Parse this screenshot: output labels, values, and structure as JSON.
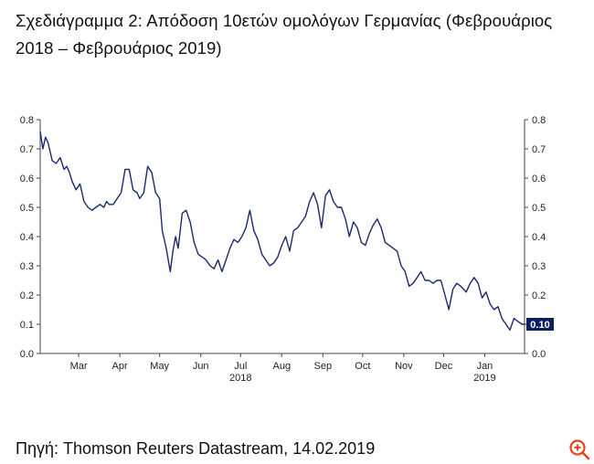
{
  "title": "Σχεδιάγραμμα 2: Απόδοση 10ετών ομολόγων Γερμανίας (Φεβρουάριος 2018 – Φεβρουάριος 2019)",
  "source": "Πηγή: Thomson Reuters Datastream, 14.02.2019",
  "zoom_icon": "zoom-in-icon",
  "colors": {
    "line": "#1a2a6c",
    "badge_bg": "#0d1f5c",
    "badge_text": "#ffffff",
    "zoom": "#e8431b"
  },
  "chart_data": {
    "type": "line",
    "title": "",
    "xlabel": "",
    "ylabel": "",
    "ylim": [
      0,
      0.8
    ],
    "yticks": [
      "0.0",
      "0.1",
      "0.2",
      "0.3",
      "0.4",
      "0.5",
      "0.6",
      "0.7",
      "0.8"
    ],
    "xrange": [
      "2018-02-14",
      "2019-02-14"
    ],
    "month_ticks": [
      {
        "label": "Mar",
        "date": "2018-03-15"
      },
      {
        "label": "Apr",
        "date": "2018-04-15"
      },
      {
        "label": "May",
        "date": "2018-05-15"
      },
      {
        "label": "Jun",
        "date": "2018-06-15"
      },
      {
        "label": "Jul",
        "date": "2018-07-15"
      },
      {
        "label": "Aug",
        "date": "2018-08-15"
      },
      {
        "label": "Sep",
        "date": "2018-09-15"
      },
      {
        "label": "Oct",
        "date": "2018-10-15"
      },
      {
        "label": "Nov",
        "date": "2018-11-15"
      },
      {
        "label": "Dec",
        "date": "2018-12-15"
      },
      {
        "label": "Jan",
        "date": "2019-01-15"
      }
    ],
    "year_ticks": [
      {
        "label": "2018",
        "date": "2018-07-15"
      },
      {
        "label": "2019",
        "date": "2019-01-15"
      }
    ],
    "last_value_label": "0.10",
    "grid": false,
    "series": [
      {
        "x": [
          "2018-02-14",
          "2018-02-16",
          "2018-02-18",
          "2018-02-20",
          "2018-02-23",
          "2018-02-26",
          "2018-03-01",
          "2018-03-04",
          "2018-03-06",
          "2018-03-08",
          "2018-03-10",
          "2018-03-13",
          "2018-03-16",
          "2018-03-19",
          "2018-03-22",
          "2018-03-25",
          "2018-03-28",
          "2018-03-31",
          "2018-04-03",
          "2018-04-05",
          "2018-04-07",
          "2018-04-10",
          "2018-04-13",
          "2018-04-16",
          "2018-04-19",
          "2018-04-22",
          "2018-04-25",
          "2018-04-28",
          "2018-04-30",
          "2018-05-03",
          "2018-05-06",
          "2018-05-09",
          "2018-05-12",
          "2018-05-15",
          "2018-05-17",
          "2018-05-20",
          "2018-05-23",
          "2018-05-25",
          "2018-05-27",
          "2018-05-29",
          "2018-06-01",
          "2018-06-04",
          "2018-06-07",
          "2018-06-10",
          "2018-06-13",
          "2018-06-16",
          "2018-06-19",
          "2018-06-22",
          "2018-06-25",
          "2018-06-28",
          "2018-07-01",
          "2018-07-04",
          "2018-07-07",
          "2018-07-10",
          "2018-07-13",
          "2018-07-16",
          "2018-07-19",
          "2018-07-22",
          "2018-07-25",
          "2018-07-28",
          "2018-07-31",
          "2018-08-03",
          "2018-08-06",
          "2018-08-09",
          "2018-08-12",
          "2018-08-15",
          "2018-08-18",
          "2018-08-21",
          "2018-08-24",
          "2018-08-27",
          "2018-08-30",
          "2018-09-02",
          "2018-09-05",
          "2018-09-08",
          "2018-09-11",
          "2018-09-14",
          "2018-09-17",
          "2018-09-20",
          "2018-09-23",
          "2018-09-26",
          "2018-09-29",
          "2018-10-02",
          "2018-10-05",
          "2018-10-08",
          "2018-10-11",
          "2018-10-14",
          "2018-10-17",
          "2018-10-20",
          "2018-10-23",
          "2018-10-26",
          "2018-10-29",
          "2018-11-01",
          "2018-11-04",
          "2018-11-07",
          "2018-11-10",
          "2018-11-13",
          "2018-11-16",
          "2018-11-19",
          "2018-11-22",
          "2018-11-25",
          "2018-11-28",
          "2018-12-01",
          "2018-12-04",
          "2018-12-07",
          "2018-12-10",
          "2018-12-13",
          "2018-12-16",
          "2018-12-19",
          "2018-12-22",
          "2018-12-25",
          "2018-12-28",
          "2019-01-01",
          "2019-01-04",
          "2019-01-07",
          "2019-01-10",
          "2019-01-13",
          "2019-01-16",
          "2019-01-19",
          "2019-01-22",
          "2019-01-25",
          "2019-01-28",
          "2019-01-31",
          "2019-02-03",
          "2019-02-06",
          "2019-02-09",
          "2019-02-12",
          "2019-02-14"
        ],
        "values": [
          0.76,
          0.7,
          0.74,
          0.72,
          0.66,
          0.65,
          0.67,
          0.63,
          0.64,
          0.62,
          0.59,
          0.56,
          0.58,
          0.52,
          0.5,
          0.49,
          0.5,
          0.51,
          0.5,
          0.52,
          0.51,
          0.51,
          0.53,
          0.55,
          0.63,
          0.63,
          0.56,
          0.55,
          0.53,
          0.55,
          0.64,
          0.62,
          0.55,
          0.53,
          0.42,
          0.36,
          0.28,
          0.35,
          0.4,
          0.36,
          0.48,
          0.49,
          0.45,
          0.38,
          0.34,
          0.33,
          0.32,
          0.3,
          0.29,
          0.32,
          0.28,
          0.32,
          0.36,
          0.39,
          0.38,
          0.4,
          0.43,
          0.49,
          0.42,
          0.39,
          0.34,
          0.32,
          0.3,
          0.31,
          0.33,
          0.37,
          0.4,
          0.35,
          0.42,
          0.43,
          0.45,
          0.47,
          0.52,
          0.55,
          0.51,
          0.43,
          0.54,
          0.56,
          0.52,
          0.5,
          0.5,
          0.46,
          0.4,
          0.45,
          0.43,
          0.38,
          0.37,
          0.41,
          0.44,
          0.46,
          0.43,
          0.38,
          0.37,
          0.36,
          0.35,
          0.3,
          0.28,
          0.23,
          0.24,
          0.26,
          0.28,
          0.25,
          0.25,
          0.24,
          0.25,
          0.25,
          0.2,
          0.15,
          0.22,
          0.24,
          0.23,
          0.21,
          0.24,
          0.26,
          0.24,
          0.19,
          0.21,
          0.17,
          0.15,
          0.16,
          0.12,
          0.1,
          0.08,
          0.12,
          0.11,
          0.1,
          0.1
        ]
      }
    ]
  }
}
